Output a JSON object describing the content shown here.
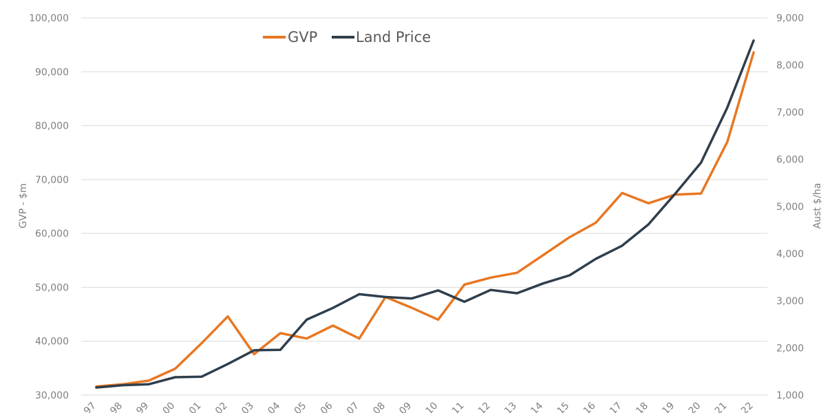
{
  "chart_data": {
    "type": "line",
    "x": [
      "97",
      "98",
      "99",
      "00",
      "01",
      "02",
      "03",
      "04",
      "05",
      "06",
      "07",
      "08",
      "09",
      "10",
      "11",
      "12",
      "13",
      "14",
      "15",
      "16",
      "17",
      "18",
      "19",
      "20",
      "21",
      "22"
    ],
    "series": [
      {
        "name": "GVP",
        "axis": "left",
        "color": "#e87722",
        "values": [
          31600,
          32000,
          32700,
          34900,
          39600,
          44600,
          37600,
          41500,
          40500,
          42900,
          40500,
          48200,
          46200,
          44000,
          50500,
          51800,
          52700,
          56000,
          59300,
          62000,
          67500,
          65600,
          67200,
          67400,
          77000,
          93600
        ]
      },
      {
        "name": "Land Price",
        "axis": "right",
        "color": "#2f3e4c",
        "values": [
          1160,
          1210,
          1230,
          1380,
          1390,
          1660,
          1950,
          1960,
          2600,
          2850,
          3140,
          3080,
          3050,
          3220,
          2980,
          3230,
          3160,
          3370,
          3540,
          3890,
          4170,
          4620,
          5260,
          5930,
          7100,
          8520
        ]
      }
    ],
    "ylabel": "GVP - $m",
    "y2label": "Aust $/ha",
    "ylim": [
      30000,
      100000
    ],
    "y2lim": [
      1000,
      9000
    ],
    "yticks": [
      "30,000",
      "40,000",
      "50,000",
      "60,000",
      "70,000",
      "80,000",
      "90,000",
      "100,000"
    ],
    "y2ticks": [
      "1,000",
      "2,000",
      "3,000",
      "4,000",
      "5,000",
      "6,000",
      "7,000",
      "8,000",
      "9,000"
    ],
    "grid": true,
    "legend_position": "top"
  }
}
